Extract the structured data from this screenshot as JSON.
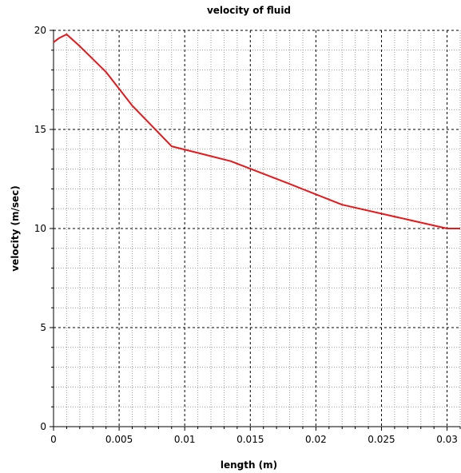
{
  "chart_data": {
    "type": "line",
    "title": "velocity of fluid",
    "xlabel": "length (m)",
    "ylabel": "velocity (m/sec)",
    "xlim": [
      0,
      0.031
    ],
    "ylim": [
      0,
      20
    ],
    "x_ticks": [
      "0",
      "0.005",
      "0.01",
      "0.015",
      "0.02",
      "0.025",
      "0.03"
    ],
    "y_ticks": [
      "0",
      "5",
      "10",
      "15",
      "20"
    ],
    "grid": true,
    "series": [
      {
        "color": "#e8171a",
        "x": [
          0,
          0.0004,
          0.001,
          0.002,
          0.004,
          0.006,
          0.009,
          0.0135,
          0.018,
          0.022,
          0.026,
          0.03,
          0.031
        ],
        "y": [
          19.4,
          19.6,
          19.8,
          19.2,
          17.9,
          16.2,
          14.15,
          13.4,
          12.25,
          11.2,
          10.6,
          10.0,
          10.0
        ]
      }
    ]
  }
}
